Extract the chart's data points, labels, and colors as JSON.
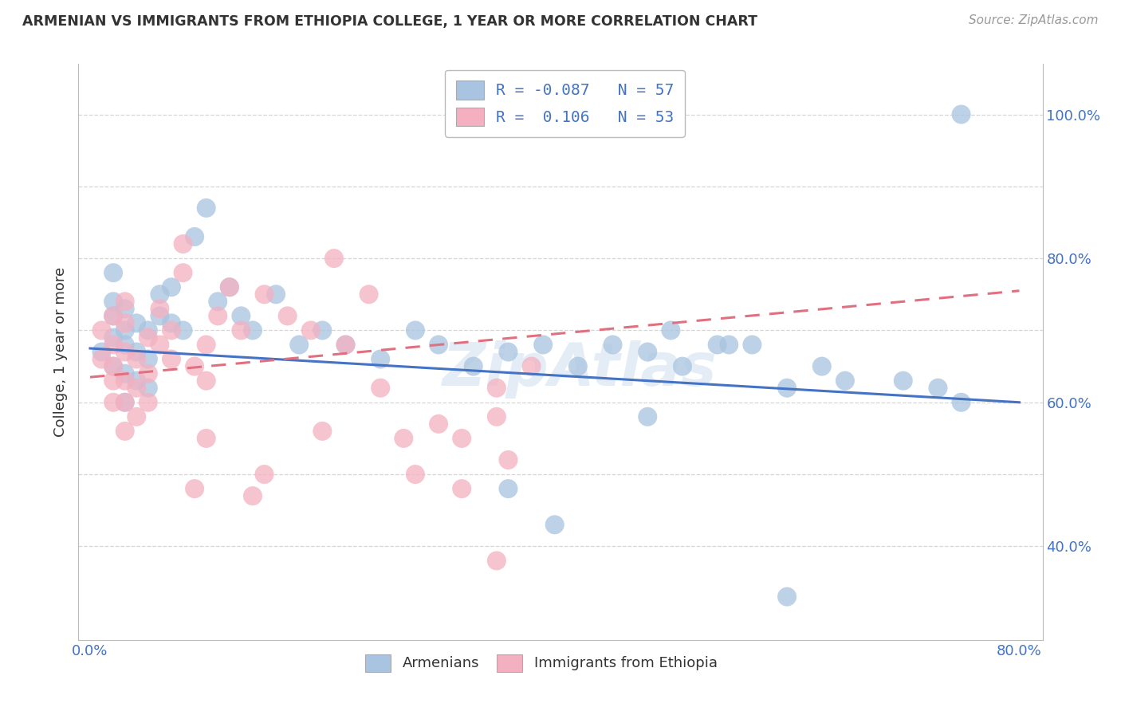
{
  "title": "ARMENIAN VS IMMIGRANTS FROM ETHIOPIA COLLEGE, 1 YEAR OR MORE CORRELATION CHART",
  "source": "Source: ZipAtlas.com",
  "ylabel": "College, 1 year or more",
  "xlim": [
    -0.01,
    0.82
  ],
  "ylim": [
    0.27,
    1.07
  ],
  "color_armenian": "#a8c4e0",
  "color_ethiopia": "#f4b0c0",
  "line_color_armenian": "#4472c4",
  "line_color_ethiopia": "#e07080",
  "background_color": "#ffffff",
  "grid_color": "#cccccc",
  "watermark": "ZipAtlas",
  "arm_line_x0": 0.0,
  "arm_line_x1": 0.8,
  "arm_line_y0": 0.675,
  "arm_line_y1": 0.6,
  "eth_line_x0": 0.0,
  "eth_line_x1": 0.8,
  "eth_line_y0": 0.635,
  "eth_line_y1": 0.755,
  "armenian_x": [
    0.01,
    0.02,
    0.02,
    0.02,
    0.02,
    0.02,
    0.03,
    0.03,
    0.03,
    0.03,
    0.03,
    0.04,
    0.04,
    0.04,
    0.05,
    0.05,
    0.05,
    0.06,
    0.06,
    0.07,
    0.07,
    0.08,
    0.09,
    0.1,
    0.11,
    0.12,
    0.13,
    0.14,
    0.16,
    0.18,
    0.2,
    0.22,
    0.25,
    0.28,
    0.3,
    0.33,
    0.36,
    0.39,
    0.42,
    0.45,
    0.48,
    0.51,
    0.54,
    0.57,
    0.6,
    0.63,
    0.5,
    0.55,
    0.65,
    0.7,
    0.73,
    0.75,
    0.36,
    0.4,
    0.48,
    0.6,
    0.75
  ],
  "armenian_y": [
    0.67,
    0.69,
    0.65,
    0.72,
    0.74,
    0.78,
    0.68,
    0.7,
    0.73,
    0.64,
    0.6,
    0.71,
    0.67,
    0.63,
    0.7,
    0.66,
    0.62,
    0.75,
    0.72,
    0.76,
    0.71,
    0.7,
    0.83,
    0.87,
    0.74,
    0.76,
    0.72,
    0.7,
    0.75,
    0.68,
    0.7,
    0.68,
    0.66,
    0.7,
    0.68,
    0.65,
    0.67,
    0.68,
    0.65,
    0.68,
    0.67,
    0.65,
    0.68,
    0.68,
    0.62,
    0.65,
    0.7,
    0.68,
    0.63,
    0.63,
    0.62,
    0.6,
    0.48,
    0.43,
    0.58,
    0.33,
    1.0
  ],
  "ethiopia_x": [
    0.01,
    0.01,
    0.02,
    0.02,
    0.02,
    0.02,
    0.02,
    0.03,
    0.03,
    0.03,
    0.03,
    0.03,
    0.03,
    0.04,
    0.04,
    0.04,
    0.05,
    0.05,
    0.05,
    0.06,
    0.06,
    0.07,
    0.07,
    0.08,
    0.08,
    0.09,
    0.1,
    0.1,
    0.11,
    0.12,
    0.13,
    0.15,
    0.17,
    0.19,
    0.21,
    0.24,
    0.27,
    0.3,
    0.32,
    0.35,
    0.36,
    0.25,
    0.2,
    0.15,
    0.09,
    0.1,
    0.22,
    0.28,
    0.32,
    0.35,
    0.38,
    0.14,
    0.35
  ],
  "ethiopia_y": [
    0.66,
    0.7,
    0.63,
    0.68,
    0.72,
    0.65,
    0.6,
    0.67,
    0.71,
    0.63,
    0.6,
    0.56,
    0.74,
    0.66,
    0.62,
    0.58,
    0.69,
    0.64,
    0.6,
    0.73,
    0.68,
    0.7,
    0.66,
    0.82,
    0.78,
    0.65,
    0.63,
    0.68,
    0.72,
    0.76,
    0.7,
    0.75,
    0.72,
    0.7,
    0.8,
    0.75,
    0.55,
    0.57,
    0.55,
    0.58,
    0.52,
    0.62,
    0.56,
    0.5,
    0.48,
    0.55,
    0.68,
    0.5,
    0.48,
    0.62,
    0.65,
    0.47,
    0.38
  ]
}
